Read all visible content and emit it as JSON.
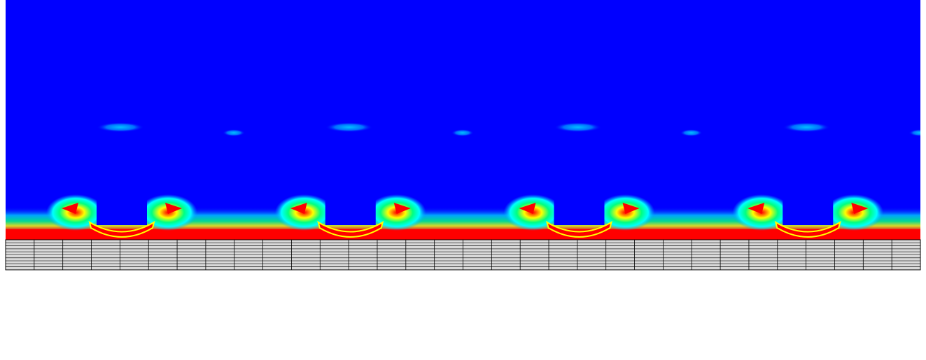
{
  "visualization": {
    "colormap": [
      "#0000ff",
      "#00a0ff",
      "#00ffff",
      "#00ff80",
      "#80ff00",
      "#ffff00",
      "#ff8000",
      "#ff0000"
    ],
    "background_field_color": "#0000ff",
    "mesh_line_color": "#000000",
    "mesh_fill_color": "#d9d9d9",
    "periodic_units": 4,
    "mesh_columns": 32,
    "mesh_rows": 10
  }
}
